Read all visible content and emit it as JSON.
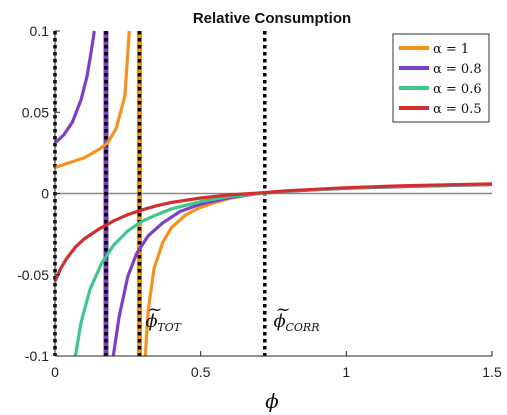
{
  "chart_data": {
    "type": "line",
    "title": "Relative Consumption",
    "xlabel": "ϕ",
    "ylabel": "",
    "xlim": [
      0,
      1.5
    ],
    "ylim": [
      -0.1,
      0.1
    ],
    "xticks": [
      0,
      0.5,
      1,
      1.5
    ],
    "xtick_labels": [
      "0",
      "0.5",
      "1",
      "1.5"
    ],
    "yticks": [
      -0.1,
      -0.05,
      0,
      0.05,
      0.1
    ],
    "ytick_labels": [
      "-0.1",
      "-0.05",
      "0",
      "0.05",
      "0.1"
    ],
    "grid": false,
    "legend_position": "top-right",
    "zero_line": {
      "y": 0,
      "color": "#888888"
    },
    "series": [
      {
        "name": "α = 1",
        "color": "#F5921E",
        "segments": [
          {
            "x": [
              0.0,
              0.05,
              0.1,
              0.15,
              0.18,
              0.21,
              0.24,
              0.255
            ],
            "y": [
              0.016,
              0.019,
              0.022,
              0.027,
              0.031,
              0.04,
              0.06,
              0.1
            ]
          },
          {
            "x": [
              0.31,
              0.32,
              0.34,
              0.37,
              0.4,
              0.45,
              0.5,
              0.55,
              0.6,
              0.65,
              0.7,
              0.8,
              0.9,
              1.0,
              1.2,
              1.5
            ],
            "y": [
              -0.1,
              -0.072,
              -0.046,
              -0.03,
              -0.021,
              -0.013,
              -0.0085,
              -0.0055,
              -0.003,
              -0.0012,
              0.0,
              0.0015,
              0.0025,
              0.0032,
              0.0043,
              0.0055
            ]
          }
        ]
      },
      {
        "name": "α = 0.8",
        "color": "#7B3FC9",
        "segments": [
          {
            "x": [
              0.0,
              0.03,
              0.06,
              0.09,
              0.11,
              0.125,
              0.135
            ],
            "y": [
              0.031,
              0.036,
              0.044,
              0.058,
              0.072,
              0.088,
              0.1
            ]
          },
          {
            "x": [
              0.2,
              0.22,
              0.25,
              0.28,
              0.32,
              0.37,
              0.43,
              0.5,
              0.6,
              0.7,
              0.8,
              1.0,
              1.2,
              1.5
            ],
            "y": [
              -0.1,
              -0.076,
              -0.051,
              -0.037,
              -0.026,
              -0.018,
              -0.011,
              -0.0065,
              -0.0025,
              0.0,
              0.0015,
              0.0032,
              0.0043,
              0.0056
            ]
          }
        ]
      },
      {
        "name": "α = 0.6",
        "color": "#3BC98A",
        "segments": [
          {
            "x": [
              0.07,
              0.09,
              0.12,
              0.16,
              0.2,
              0.25,
              0.3,
              0.35,
              0.4,
              0.5,
              0.6,
              0.7,
              0.8,
              1.0,
              1.2,
              1.5
            ],
            "y": [
              -0.1,
              -0.079,
              -0.059,
              -0.043,
              -0.032,
              -0.023,
              -0.017,
              -0.013,
              -0.0095,
              -0.005,
              -0.0018,
              0.0,
              0.0016,
              0.0033,
              0.0045,
              0.0057
            ]
          }
        ]
      },
      {
        "name": "α = 0.5",
        "color": "#D12F2F",
        "segments": [
          {
            "x": [
              0.0,
              0.02,
              0.04,
              0.07,
              0.1,
              0.15,
              0.2,
              0.25,
              0.3,
              0.35,
              0.4,
              0.5,
              0.6,
              0.7,
              0.8,
              1.0,
              1.2,
              1.5
            ],
            "y": [
              -0.054,
              -0.046,
              -0.04,
              -0.033,
              -0.028,
              -0.022,
              -0.017,
              -0.013,
              -0.01,
              -0.0075,
              -0.0055,
              -0.0028,
              -0.0008,
              0.0003,
              0.0017,
              0.0036,
              0.0048,
              0.006
            ]
          }
        ]
      }
    ],
    "vertical_lines": [
      {
        "x": 0.0,
        "color": "#000000",
        "style": "dotted"
      },
      {
        "x": 0.175,
        "color": "#7B3FC9",
        "style": "solid"
      },
      {
        "x": 0.175,
        "color": "#000000",
        "style": "dotted"
      },
      {
        "x": 0.29,
        "color": "#F5921E",
        "style": "solid"
      },
      {
        "x": 0.29,
        "color": "#000000",
        "style": "dotted"
      },
      {
        "x": 0.72,
        "color": "#000000",
        "style": "dotted"
      }
    ],
    "annotations": [
      {
        "id": "phi_tot",
        "main": "ϕ",
        "tilde": "~",
        "sub": "TOT",
        "x": 0.31,
        "y": -0.082
      },
      {
        "id": "phi_corr",
        "main": "ϕ",
        "tilde": "~",
        "sub": "CORR",
        "x": 0.75,
        "y": -0.082
      }
    ]
  }
}
